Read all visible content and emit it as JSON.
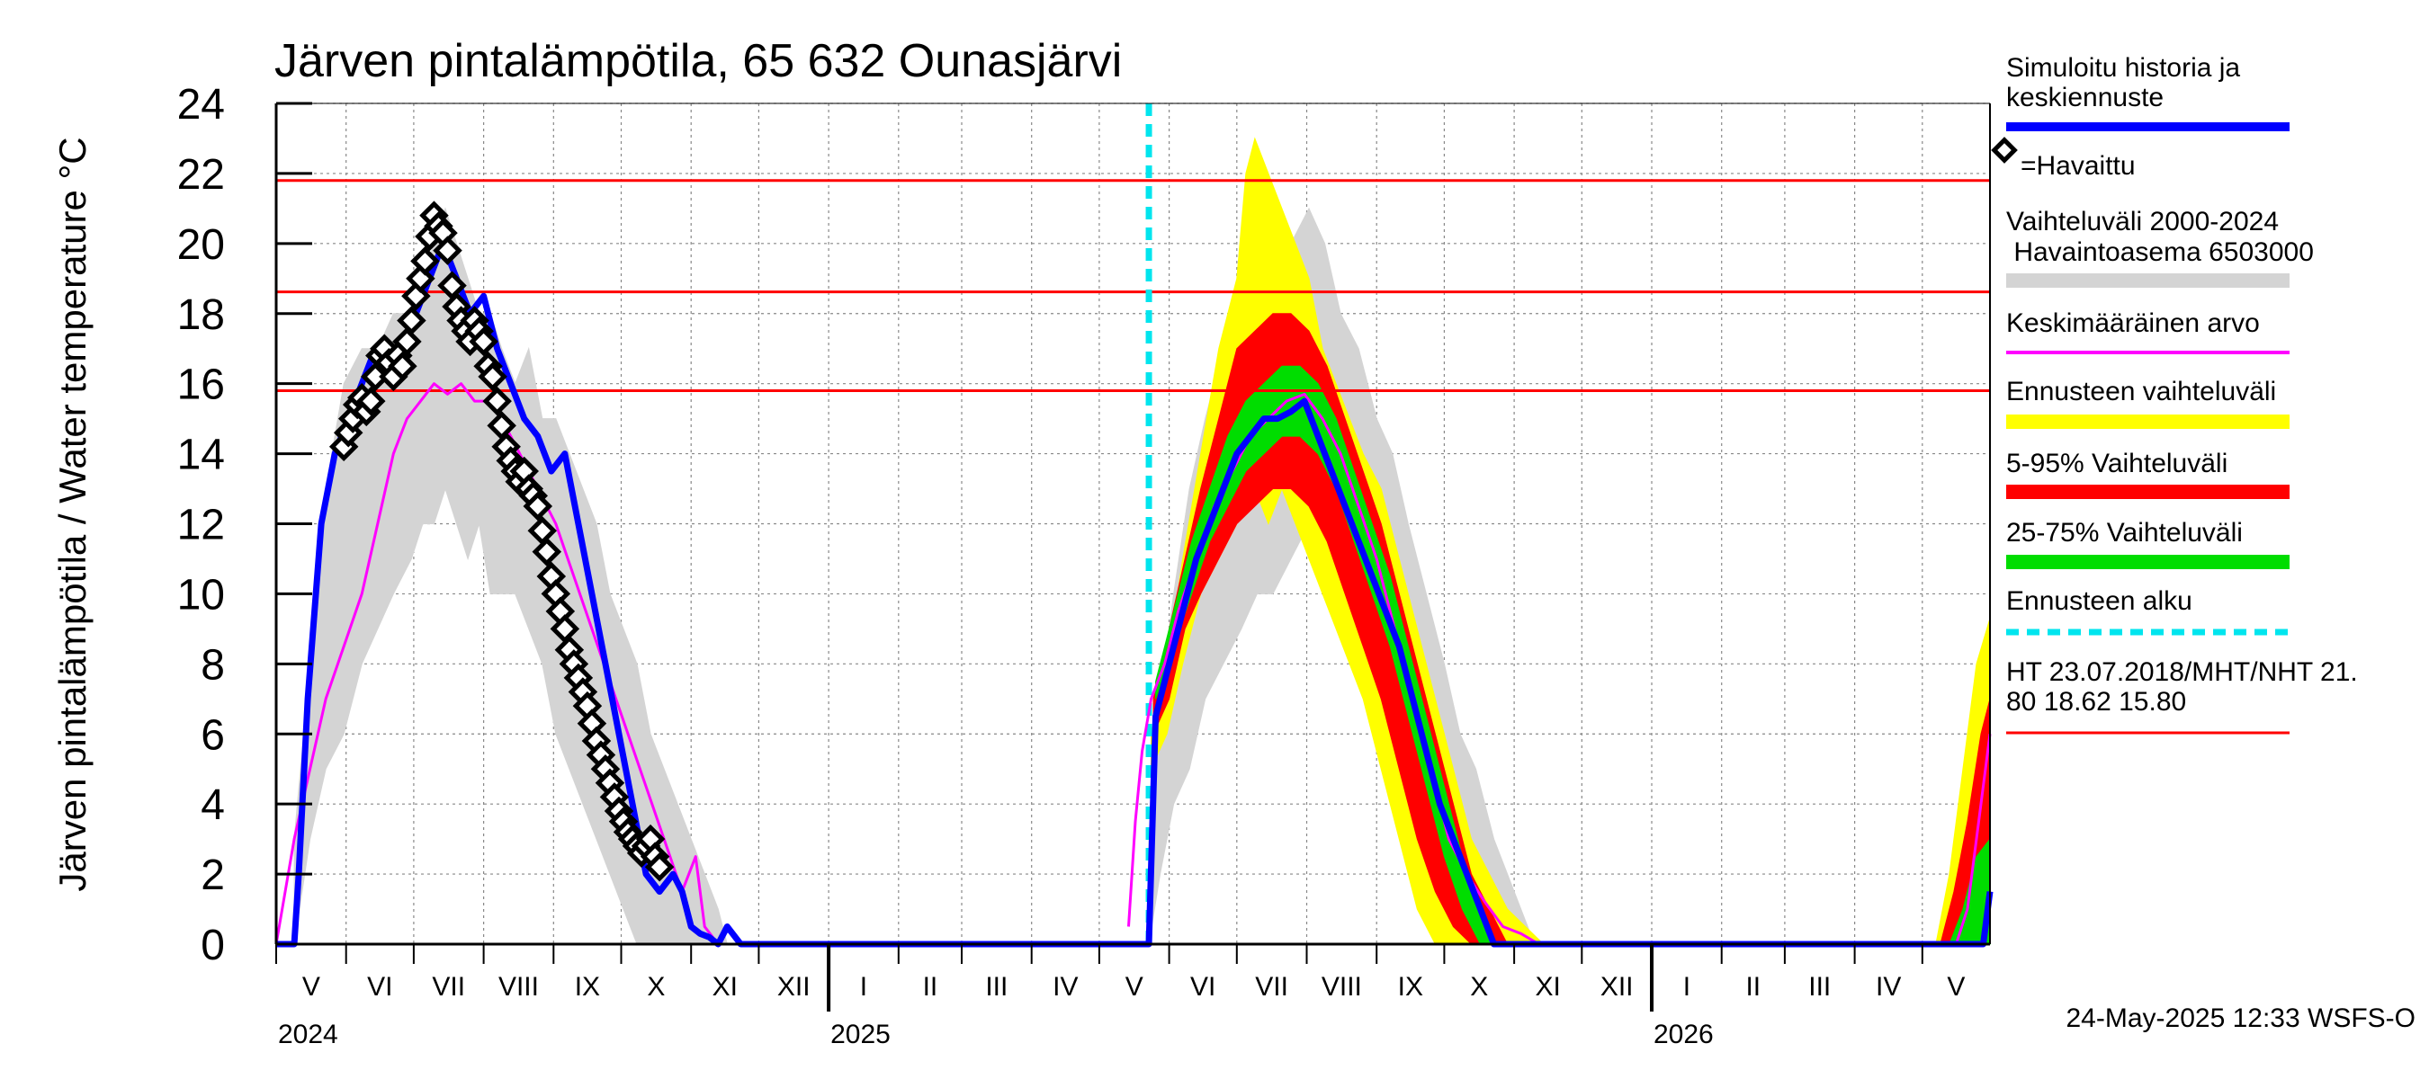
{
  "chart_data": {
    "type": "line",
    "title": "Järven pintalämpötila, 65 632 Ounasjärvi",
    "ylabel": "Järven pintalämpötila / Water temperature °C",
    "ylim": [
      0,
      24
    ],
    "yticks": [
      0,
      2,
      4,
      6,
      8,
      10,
      12,
      14,
      16,
      18,
      20,
      22,
      24
    ],
    "grid": true,
    "x_unit": "days since 2024-05-01",
    "xlim": [
      0,
      760
    ],
    "months": [
      {
        "label": "V",
        "start": 0,
        "end": 31
      },
      {
        "label": "VI",
        "start": 31,
        "end": 61
      },
      {
        "label": "VII",
        "start": 61,
        "end": 92
      },
      {
        "label": "VIII",
        "start": 92,
        "end": 123
      },
      {
        "label": "IX",
        "start": 123,
        "end": 153
      },
      {
        "label": "X",
        "start": 153,
        "end": 184
      },
      {
        "label": "XI",
        "start": 184,
        "end": 214
      },
      {
        "label": "XII",
        "start": 214,
        "end": 245
      },
      {
        "label": "I",
        "start": 245,
        "end": 276
      },
      {
        "label": "II",
        "start": 276,
        "end": 304
      },
      {
        "label": "III",
        "start": 304,
        "end": 335
      },
      {
        "label": "IV",
        "start": 335,
        "end": 365
      },
      {
        "label": "V",
        "start": 365,
        "end": 396
      },
      {
        "label": "VI",
        "start": 396,
        "end": 426
      },
      {
        "label": "VII",
        "start": 426,
        "end": 457
      },
      {
        "label": "VIII",
        "start": 457,
        "end": 488
      },
      {
        "label": "IX",
        "start": 488,
        "end": 518
      },
      {
        "label": "X",
        "start": 518,
        "end": 549
      },
      {
        "label": "XI",
        "start": 549,
        "end": 579
      },
      {
        "label": "XII",
        "start": 579,
        "end": 610
      },
      {
        "label": "I",
        "start": 610,
        "end": 641
      },
      {
        "label": "II",
        "start": 641,
        "end": 669
      },
      {
        "label": "III",
        "start": 669,
        "end": 700
      },
      {
        "label": "IV",
        "start": 700,
        "end": 730
      },
      {
        "label": "V",
        "start": 730,
        "end": 760
      }
    ],
    "years": [
      {
        "label": "2024",
        "x": 0
      },
      {
        "label": "2025",
        "x": 245
      },
      {
        "label": "2026",
        "x": 610
      }
    ],
    "year_boundaries": [
      245,
      610
    ],
    "forecast_start": 387,
    "hlines": [
      21.8,
      18.62,
      15.8
    ],
    "series": [
      {
        "name": "Vaihteluväli 2000-2024 Havaintoasema 6503000",
        "kind": "band",
        "color": "#d4d4d4",
        "x": [
          8,
          15,
          22,
          30,
          38,
          45,
          52,
          60,
          65,
          70,
          75,
          80,
          85,
          90,
          95,
          100,
          106,
          112,
          118,
          124,
          130,
          136,
          142,
          148,
          154,
          160,
          166,
          172,
          178,
          184,
          190,
          196,
          200
        ],
        "upper": [
          3,
          8,
          13,
          16,
          17,
          17,
          18,
          18,
          19,
          20,
          21,
          20,
          19,
          18,
          18,
          17,
          16,
          17,
          15,
          15,
          14,
          13,
          12,
          10,
          9,
          8,
          6,
          5,
          4,
          3,
          2,
          1,
          0
        ],
        "lower": [
          0,
          3,
          5,
          6,
          8,
          9,
          10,
          11,
          12,
          12,
          13,
          12,
          11,
          12,
          10,
          10,
          10,
          9,
          8,
          6,
          5,
          4,
          3,
          2,
          1,
          0,
          0,
          0,
          0,
          0,
          0,
          0,
          0
        ]
      },
      {
        "name": "Vaihteluväli 2000-2024 (ennuste)",
        "kind": "band",
        "color": "#d4d4d4",
        "x": [
          387,
          392,
          398,
          405,
          412,
          420,
          428,
          435,
          442,
          450,
          458,
          465,
          472,
          480,
          488,
          495,
          502,
          510,
          518,
          525,
          532,
          540,
          546,
          552,
          558
        ],
        "upper": [
          3,
          7,
          10,
          13,
          15,
          17,
          18,
          19,
          20,
          20,
          21,
          20,
          18,
          17,
          15,
          14,
          12,
          10,
          8,
          6,
          5,
          3,
          2,
          1,
          0
        ],
        "lower": [
          0,
          2,
          4,
          5,
          7,
          8,
          9,
          10,
          10,
          11,
          12,
          11,
          10,
          9,
          7,
          5,
          3,
          1,
          0,
          0,
          0,
          0,
          0,
          0,
          0
        ]
      },
      {
        "name": "Ennusteen vaihteluväli",
        "kind": "band",
        "color": "#ffff00",
        "x": [
          388,
          395,
          402,
          410,
          418,
          426,
          430,
          434,
          440,
          446,
          452,
          458,
          464,
          470,
          476,
          482,
          490,
          498,
          506,
          514,
          522,
          530,
          538,
          546,
          554,
          562
        ],
        "upper": [
          6,
          8,
          11,
          14,
          17,
          19,
          22,
          23,
          22,
          21,
          20,
          19,
          17,
          16,
          15,
          14,
          13,
          11,
          9,
          7,
          5,
          3,
          2,
          1,
          0.5,
          0
        ],
        "lower": [
          5,
          6,
          8,
          10,
          11,
          12,
          13,
          13,
          12,
          13,
          12,
          11,
          10,
          9,
          8,
          7,
          5,
          3,
          1,
          0,
          0,
          0,
          0,
          0,
          0,
          0
        ]
      },
      {
        "name": "5-95% Vaihteluväli",
        "kind": "band",
        "color": "#ff0000",
        "x": [
          389,
          396,
          403,
          410,
          418,
          426,
          434,
          442,
          450,
          458,
          466,
          474,
          482,
          490,
          498,
          506,
          514,
          522,
          530,
          538,
          546
        ],
        "upper": [
          7,
          9,
          11,
          13,
          15,
          17,
          17.5,
          18,
          18,
          17.5,
          16.5,
          15,
          13.5,
          12,
          10,
          8,
          6,
          4,
          2,
          1,
          0
        ],
        "lower": [
          6,
          7,
          9,
          10,
          11,
          12,
          12.5,
          13,
          13,
          12.5,
          11.5,
          10,
          8.5,
          7,
          5,
          3,
          1.5,
          0.5,
          0,
          0,
          0
        ]
      },
      {
        "name": "25-75% Vaihteluväli",
        "kind": "band",
        "color": "#00dd00",
        "x": [
          390,
          398,
          406,
          414,
          422,
          430,
          438,
          446,
          454,
          462,
          470,
          478,
          486,
          494,
          502,
          510,
          518,
          526,
          534,
          540
        ],
        "upper": [
          7.5,
          9.5,
          11.5,
          13,
          14.5,
          15.5,
          16,
          16.5,
          16.5,
          16,
          15,
          13.5,
          12,
          10.5,
          8.5,
          6.5,
          4.5,
          2.5,
          1,
          0
        ],
        "lower": [
          7,
          8.5,
          10,
          11.5,
          12.5,
          13.5,
          14,
          14.5,
          14.5,
          14,
          13,
          11.5,
          10,
          8.5,
          6.5,
          4.5,
          2.5,
          1,
          0,
          0
        ]
      },
      {
        "name": "Ennusteen vaihteluväli (2026)",
        "kind": "band",
        "color": "#ffff00",
        "x": [
          736,
          742,
          748,
          754,
          760
        ],
        "upper": [
          0,
          2,
          5,
          8,
          9.3
        ],
        "lower": [
          0,
          0,
          0,
          0,
          0
        ]
      },
      {
        "name": "5-95% Vaihteluväli (2026)",
        "kind": "band",
        "color": "#ff0000",
        "x": [
          738,
          744,
          750,
          756,
          760
        ],
        "upper": [
          0,
          1.5,
          3.5,
          6,
          7
        ],
        "lower": [
          0,
          0,
          0,
          0,
          0
        ]
      },
      {
        "name": "25-75% Vaihteluväli (2026)",
        "kind": "band",
        "color": "#00dd00",
        "x": [
          742,
          748,
          754,
          760
        ],
        "upper": [
          0,
          1,
          2.5,
          3
        ],
        "lower": [
          0,
          0,
          0,
          0
        ]
      },
      {
        "name": "Keskimääräinen arvo",
        "kind": "line",
        "color": "#ff00ff",
        "width": 3,
        "x": [
          0,
          8,
          15,
          22,
          30,
          38,
          45,
          52,
          58,
          64,
          70,
          76,
          82,
          88,
          94,
          100,
          108,
          116,
          124,
          132,
          140,
          148,
          156,
          164,
          172,
          180,
          186,
          190,
          196,
          200,
          210
        ],
        "y": [
          0,
          3,
          5,
          7,
          8.5,
          10,
          12,
          14,
          15,
          15.5,
          16,
          15.7,
          16,
          15.5,
          15.5,
          15,
          14,
          13,
          12,
          10.5,
          9,
          7.5,
          6,
          4.5,
          3,
          1.5,
          2.5,
          0.5,
          0,
          0,
          0
        ]
      },
      {
        "name": "Keskimääräinen arvo (ennuste)",
        "kind": "line",
        "color": "#ff00ff",
        "width": 3,
        "x": [
          378,
          381,
          384,
          388,
          394,
          400,
          408,
          416,
          424,
          432,
          440,
          448,
          456,
          464,
          472,
          480,
          488,
          496,
          504,
          512,
          520,
          528,
          536,
          544,
          552,
          560,
          566
        ],
        "y": [
          0.5,
          3.5,
          5.5,
          7,
          8,
          9.5,
          11,
          12.5,
          13.5,
          14.5,
          15,
          15.5,
          15.7,
          15,
          14,
          12.5,
          11,
          9,
          7,
          5,
          3,
          2,
          1.2,
          0.5,
          0.3,
          0,
          0
        ]
      },
      {
        "name": "Keskimääräinen arvo (2026)",
        "kind": "line",
        "color": "#ff00ff",
        "width": 3,
        "x": [
          745,
          750,
          754,
          758,
          760
        ],
        "y": [
          0,
          1,
          3,
          5,
          6
        ]
      },
      {
        "name": "Simuloitu historia ja keskiennuste",
        "kind": "line",
        "color": "#0000ff",
        "width": 7,
        "x": [
          0,
          8,
          10,
          14,
          20,
          26,
          32,
          38,
          44,
          50,
          56,
          62,
          68,
          74,
          80,
          86,
          92,
          98,
          104,
          110,
          116,
          122,
          128,
          134,
          140,
          146,
          152,
          158,
          164,
          170,
          176,
          180,
          184,
          188,
          192,
          196,
          200,
          206,
          214,
          250,
          300,
          350,
          385,
          387,
          390,
          396,
          402,
          408,
          414,
          420,
          426,
          432,
          438,
          444,
          450,
          456,
          462,
          468,
          474,
          480,
          486,
          492,
          498,
          504,
          510,
          516,
          522,
          528,
          534,
          540,
          560,
          600,
          650,
          700,
          750,
          757,
          760
        ],
        "y": [
          0,
          0,
          2,
          7,
          12,
          14,
          15,
          16,
          17,
          16.5,
          17,
          18,
          19,
          20,
          19,
          18,
          18.5,
          17,
          16,
          15,
          14.5,
          13.5,
          14,
          12,
          10,
          8,
          6,
          4,
          2,
          1.5,
          2,
          1.5,
          0.5,
          0.3,
          0.2,
          0,
          0.5,
          0,
          0,
          0,
          0,
          0,
          0,
          0,
          6.5,
          8,
          9.5,
          11,
          12,
          13,
          14,
          14.5,
          15,
          15,
          15.2,
          15.5,
          14.5,
          13.5,
          12.5,
          11.5,
          10.5,
          9.5,
          8.5,
          7,
          5.5,
          4,
          3,
          2,
          1,
          0,
          0,
          0,
          0,
          0,
          0,
          0,
          1.5
        ]
      },
      {
        "name": "Havaittu",
        "kind": "markers",
        "color": "#000000",
        "x": [
          30,
          32,
          34,
          36,
          38,
          40,
          42,
          44,
          46,
          48,
          50,
          52,
          54,
          56,
          58,
          60,
          62,
          64,
          66,
          68,
          70,
          72,
          74,
          76,
          78,
          80,
          82,
          84,
          86,
          88,
          90,
          92,
          94,
          96,
          98,
          100,
          102,
          104,
          106,
          108,
          110,
          112,
          114,
          116,
          118,
          120,
          122,
          124,
          126,
          128,
          130,
          132,
          134,
          136,
          138,
          140,
          142,
          144,
          146,
          148,
          150,
          152,
          154,
          156,
          158,
          160,
          162,
          164,
          166,
          168,
          170
        ],
        "y": [
          14.2,
          14.6,
          15,
          15.4,
          15.6,
          15.2,
          15.5,
          16.2,
          16.8,
          17,
          16.6,
          16.2,
          16.8,
          16.5,
          17.2,
          17.8,
          18.5,
          19,
          19.5,
          20.2,
          20.8,
          20.5,
          20.3,
          19.8,
          18.8,
          18.2,
          17.8,
          17.5,
          17.2,
          17.8,
          17.5,
          17.2,
          16.5,
          16.2,
          15.5,
          14.8,
          14.2,
          13.8,
          13.5,
          13.2,
          13.5,
          13,
          12.8,
          12.5,
          11.8,
          11.2,
          10.5,
          10,
          9.5,
          9,
          8.4,
          8,
          7.6,
          7.2,
          6.8,
          6.3,
          5.8,
          5.4,
          5,
          4.6,
          4.2,
          3.8,
          3.5,
          3.2,
          3,
          2.8,
          2.6,
          2.8,
          3,
          2.5,
          2.2
        ]
      }
    ],
    "legend": [
      {
        "label": "Simuloitu historia ja keskiennuste",
        "style": "line",
        "color": "#0000ff"
      },
      {
        "label": "=Havaittu",
        "style": "marker",
        "color": "#000000"
      },
      {
        "label": "Vaihteluväli 2000-2024 Havaintoasema 6503000",
        "style": "band",
        "color": "#d4d4d4"
      },
      {
        "label": "Keskimääräinen arvo",
        "style": "line",
        "color": "#ff00ff"
      },
      {
        "label": "Ennusteen vaihteluväli",
        "style": "band",
        "color": "#ffff00"
      },
      {
        "label": "5-95% Vaihteluväli",
        "style": "band",
        "color": "#ff0000"
      },
      {
        "label": "25-75% Vaihteluväli",
        "style": "band",
        "color": "#00dd00"
      },
      {
        "label": "Ennusteen alku",
        "style": "dash",
        "color": "#00e5ee"
      },
      {
        "label": "HT 23.07.2018/MHT/NHT 21.80 18.62 15.80",
        "style": "line",
        "color": "#ff0000"
      }
    ],
    "footer": "24-May-2025 12:33 WSFS-O"
  },
  "legend_text": {
    "sim_line1": "Simuloitu historia ja",
    "sim_line2": "keskiennuste",
    "observed": "=Havaittu",
    "range_line1": "Vaihteluväli 2000-2024",
    "range_line2": " Havaintoasema 6503000",
    "mean": "Keskimääräinen arvo",
    "forecast_range": "Ennusteen vaihteluväli",
    "p5_95": "5-95% Vaihteluväli",
    "p25_75": "25-75% Vaihteluväli",
    "forecast_start": "Ennusteen alku",
    "ht_line1": "HT 23.07.2018/MHT/NHT 21.",
    "ht_line2": "80 18.62 15.80"
  },
  "colors": {
    "sim": "#0000ff",
    "observed": "#000000",
    "range": "#d4d4d4",
    "mean": "#ff00ff",
    "forecast_range": "#ffff00",
    "p5_95": "#ff0000",
    "p25_75": "#00dd00",
    "forecast_start": "#00e5ee",
    "ht": "#ff0000"
  }
}
